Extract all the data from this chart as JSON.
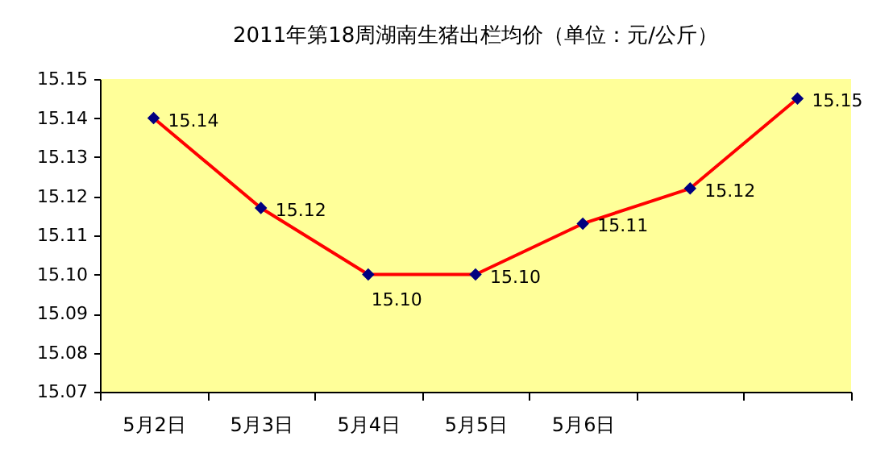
{
  "chart_data": {
    "type": "line",
    "title": "2011年第18周湖南生猪出栏均价（单位：元/公斤）",
    "categories": [
      "5月2日",
      "5月3日",
      "5月4日",
      "5月5日",
      "5月6日",
      null,
      null
    ],
    "series": [
      {
        "color": "#ff0000",
        "colors": [
          "#000080",
          "#000080",
          "#000080",
          "#000080",
          "#000080",
          "#000080",
          "#000080"
        ],
        "values": [
          15.14,
          15.117,
          15.1,
          15.1,
          15.113,
          15.122,
          15.145
        ],
        "value_labels": [
          "15.14",
          "15.12",
          "15.10",
          "15.10",
          "15.11",
          "15.12",
          "15.15"
        ]
      }
    ],
    "ylim": [
      15.07,
      15.15
    ],
    "yticks": [
      15.07,
      15.08,
      15.09,
      {
        "value": 15.1,
        "label": "15.10"
      },
      15.11,
      15.12,
      15.13,
      15.14,
      15.15
    ],
    "marker": "diamond",
    "line_style": "solid",
    "grid": false
  }
}
